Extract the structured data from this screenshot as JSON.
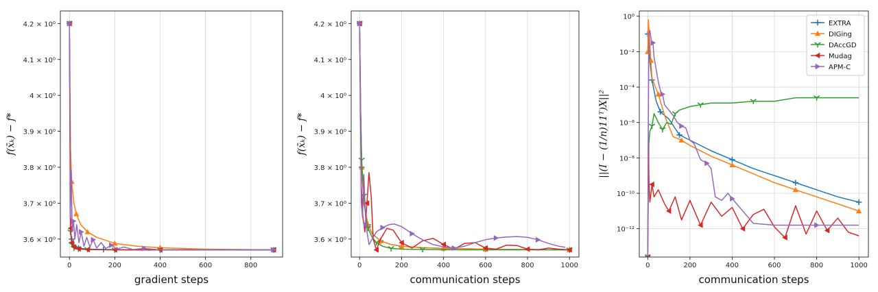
{
  "chart_data": [
    {
      "type": "line",
      "xlabel": "gradient steps",
      "ylabel": "f(x̄ₖ) − f*",
      "xlim": [
        -40,
        940
      ],
      "ylim": [
        3.55,
        4.235
      ],
      "xticks": [
        0,
        200,
        400,
        600,
        800
      ],
      "yticks": [
        3.6,
        3.7,
        3.8,
        3.9,
        4.0,
        4.1,
        4.2
      ],
      "ytick_labels": [
        "3.6 × 10⁰",
        "3.7 × 10⁰",
        "3.8 × 10⁰",
        "3.9 × 10⁰",
        "4 × 10⁰",
        "4.1 × 10⁰",
        "4.2 × 10⁰"
      ],
      "grid": "vertical",
      "series": [
        {
          "color": "#1f77b4",
          "marker": "plus",
          "x": [
            0,
            5,
            10,
            20,
            40,
            80,
            150,
            250,
            400,
            600,
            900
          ],
          "y": [
            4.2,
            3.62,
            3.6,
            3.585,
            3.575,
            3.572,
            3.571,
            3.57,
            3.57,
            3.57,
            3.57
          ]
        },
        {
          "color": "#ff7f0e",
          "marker": "triangle",
          "x": [
            0,
            5,
            10,
            20,
            30,
            50,
            80,
            120,
            200,
            300,
            400,
            600,
            900
          ],
          "y": [
            4.2,
            3.85,
            3.76,
            3.7,
            3.67,
            3.64,
            3.62,
            3.605,
            3.588,
            3.58,
            3.576,
            3.572,
            3.57
          ]
        },
        {
          "color": "#2ca02c",
          "marker": "tri_down",
          "x": [
            0,
            5,
            10,
            20,
            40,
            80,
            200,
            400,
            900
          ],
          "y": [
            4.2,
            3.62,
            3.585,
            3.575,
            3.572,
            3.571,
            3.57,
            3.57,
            3.57
          ]
        },
        {
          "color": "#d62728",
          "marker": "arrow_left",
          "x": [
            0,
            5,
            10,
            20,
            40,
            80,
            200,
            400,
            900
          ],
          "y": [
            4.2,
            3.63,
            3.59,
            3.578,
            3.573,
            3.571,
            3.57,
            3.57,
            3.57
          ]
        },
        {
          "color": "#9467bd",
          "marker": "arrow_right",
          "x": [
            0,
            4,
            8,
            12,
            18,
            24,
            32,
            42,
            52,
            64,
            76,
            90,
            105,
            120,
            140,
            160,
            185,
            210,
            240,
            280,
            330,
            400,
            500,
            650,
            900
          ],
          "y": [
            4.2,
            3.66,
            3.79,
            3.62,
            3.65,
            3.6,
            3.64,
            3.59,
            3.62,
            3.58,
            3.605,
            3.578,
            3.598,
            3.575,
            3.59,
            3.574,
            3.583,
            3.572,
            3.578,
            3.571,
            3.574,
            3.57,
            3.571,
            3.57,
            3.57
          ]
        }
      ]
    },
    {
      "type": "line",
      "xlabel": "communication steps",
      "ylabel": "f(x̄ₖ) − f*",
      "xlim": [
        -40,
        1045
      ],
      "ylim": [
        3.55,
        4.235
      ],
      "xticks": [
        0,
        200,
        400,
        600,
        800,
        1000
      ],
      "yticks": [
        3.6,
        3.7,
        3.8,
        3.9,
        4.0,
        4.1,
        4.2
      ],
      "ytick_labels": [
        "3.6 × 10⁰",
        "3.7 × 10⁰",
        "3.8 × 10⁰",
        "3.9 × 10⁰",
        "4 × 10⁰",
        "4.1 × 10⁰",
        "4.2 × 10⁰"
      ],
      "grid": "vertical",
      "series": [
        {
          "color": "#1f77b4",
          "marker": "plus",
          "x": [
            0,
            5,
            10,
            20,
            40,
            60,
            100,
            150,
            200,
            300,
            400,
            500,
            600,
            800,
            1000
          ],
          "y": [
            4.2,
            3.95,
            3.8,
            3.7,
            3.64,
            3.615,
            3.595,
            3.585,
            3.58,
            3.576,
            3.574,
            3.573,
            3.572,
            3.571,
            3.57
          ]
        },
        {
          "color": "#ff7f0e",
          "marker": "triangle",
          "x": [
            0,
            5,
            10,
            20,
            40,
            60,
            100,
            150,
            200,
            300,
            400,
            500,
            600,
            800,
            1000
          ],
          "y": [
            4.2,
            3.95,
            3.8,
            3.7,
            3.64,
            3.615,
            3.595,
            3.585,
            3.58,
            3.576,
            3.574,
            3.573,
            3.572,
            3.571,
            3.57
          ]
        },
        {
          "color": "#2ca02c",
          "marker": "tri_down",
          "x": [
            0,
            5,
            10,
            15,
            20,
            30,
            40,
            60,
            80,
            110,
            150,
            200,
            300,
            500,
            1000
          ],
          "y": [
            4.2,
            3.95,
            3.82,
            3.77,
            3.72,
            3.66,
            3.63,
            3.605,
            3.59,
            3.58,
            3.574,
            3.572,
            3.571,
            3.57,
            3.57
          ]
        },
        {
          "color": "#d62728",
          "marker": "arrow_left",
          "x": [
            0,
            8,
            16,
            25,
            35,
            45,
            55,
            65,
            80,
            100,
            130,
            160,
            200,
            250,
            300,
            350,
            400,
            450,
            500,
            550,
            600,
            650,
            700,
            750,
            800,
            850,
            900,
            950,
            1000
          ],
          "y": [
            4.2,
            3.75,
            3.66,
            3.62,
            3.7,
            3.785,
            3.72,
            3.6,
            3.57,
            3.6,
            3.63,
            3.625,
            3.59,
            3.575,
            3.595,
            3.602,
            3.585,
            3.572,
            3.588,
            3.59,
            3.575,
            3.572,
            3.583,
            3.582,
            3.572,
            3.57,
            3.575,
            3.572,
            3.57
          ]
        },
        {
          "color": "#9467bd",
          "marker": "arrow_right",
          "x": [
            0,
            8,
            14,
            20,
            30,
            45,
            60,
            80,
            110,
            140,
            165,
            200,
            250,
            300,
            350,
            400,
            450,
            500,
            550,
            600,
            650,
            700,
            750,
            800,
            850,
            900,
            950,
            980
          ],
          "y": [
            4.2,
            3.7,
            3.66,
            3.78,
            3.64,
            3.585,
            3.6,
            3.62,
            3.632,
            3.64,
            3.642,
            3.635,
            3.615,
            3.598,
            3.585,
            3.578,
            3.575,
            3.58,
            3.59,
            3.598,
            3.603,
            3.606,
            3.607,
            3.605,
            3.598,
            3.588,
            3.58,
            3.577
          ]
        }
      ]
    },
    {
      "type": "line",
      "xlabel": "communication steps",
      "ylabel": "||(I − (1/n)11ᵀ)X||²",
      "yscale": "log",
      "xlim": [
        -40,
        1045
      ],
      "ylim_log10": [
        -13.6,
        0.3
      ],
      "xticks": [
        0,
        200,
        400,
        600,
        800,
        1000
      ],
      "yticks_log10": [
        0,
        -2,
        -4,
        -6,
        -8,
        -10,
        -12
      ],
      "grid": "both",
      "legend_position": "top-right",
      "series": [
        {
          "name": "EXTRA",
          "color": "#1f77b4",
          "marker": "plus",
          "x": [
            0,
            5,
            10,
            20,
            30,
            40,
            60,
            80,
            100,
            150,
            200,
            300,
            400,
            500,
            600,
            700,
            800,
            900,
            1000
          ],
          "y_log10": [
            -1.0,
            -1.5,
            -2.5,
            -3.6,
            -4.2,
            -4.8,
            -5.4,
            -5.6,
            -5.8,
            -6.7,
            -7.0,
            -7.6,
            -8.1,
            -8.6,
            -9.0,
            -9.4,
            -9.8,
            -10.2,
            -10.5
          ]
        },
        {
          "name": "DIGing",
          "color": "#ff7f0e",
          "marker": "triangle",
          "x": [
            0,
            3,
            10,
            15,
            20,
            30,
            50,
            80,
            120,
            160,
            200,
            300,
            400,
            500,
            600,
            700,
            800,
            900,
            1000
          ],
          "y_log10": [
            -2.0,
            -0.2,
            -1.5,
            -2.5,
            -3.5,
            -3.8,
            -4.4,
            -5.6,
            -6.8,
            -7.0,
            -7.3,
            -7.9,
            -8.4,
            -8.9,
            -9.4,
            -9.8,
            -10.2,
            -10.6,
            -11.0
          ]
        },
        {
          "name": "DAccGD",
          "color": "#2ca02c",
          "marker": "tri_down",
          "x": [
            0,
            5,
            10,
            20,
            30,
            50,
            70,
            90,
            110,
            130,
            150,
            200,
            250,
            300,
            400,
            500,
            600,
            700,
            800,
            900,
            1000
          ],
          "y_log10": [
            -13.6,
            -7.2,
            -6.5,
            -6.2,
            -5.5,
            -6.0,
            -6.4,
            -6.0,
            -6.1,
            -5.5,
            -5.3,
            -5.1,
            -5.0,
            -4.9,
            -4.9,
            -4.8,
            -4.8,
            -4.6,
            -4.6,
            -4.6,
            -4.6
          ]
        },
        {
          "name": "Mudag",
          "color": "#d62728",
          "marker": "arrow_left",
          "x": [
            0,
            3,
            6,
            10,
            20,
            30,
            50,
            80,
            100,
            130,
            160,
            200,
            250,
            300,
            350,
            400,
            450,
            500,
            550,
            600,
            650,
            700,
            750,
            800,
            850,
            900,
            950,
            1000
          ],
          "y_log10": [
            -13.6,
            -7.0,
            -9.5,
            -10.5,
            -9.5,
            -10.2,
            -9.8,
            -10.6,
            -11.0,
            -10.2,
            -11.5,
            -10.4,
            -11.8,
            -10.5,
            -11.3,
            -10.8,
            -12.0,
            -11.2,
            -10.9,
            -11.9,
            -12.5,
            -10.7,
            -12.3,
            -11.0,
            -12.1,
            -11.4,
            -12.2,
            -12.4
          ]
        },
        {
          "name": "APM-C",
          "color": "#9467bd",
          "marker": "arrow_right",
          "x": [
            0,
            5,
            10,
            15,
            20,
            25,
            30,
            40,
            50,
            60,
            70,
            80,
            100,
            120,
            140,
            160,
            180,
            200,
            220,
            250,
            280,
            300,
            320,
            350,
            380,
            400,
            450,
            500,
            600,
            700,
            800,
            900,
            1000
          ],
          "y_log10": [
            -13.6,
            -1.0,
            -0.8,
            -1.2,
            -1.6,
            -1.5,
            -2.3,
            -3.0,
            -3.7,
            -4.2,
            -4.4,
            -5.0,
            -5.3,
            -5.6,
            -6.0,
            -6.2,
            -6.3,
            -7.0,
            -7.2,
            -8.1,
            -8.3,
            -8.6,
            -10.2,
            -10.4,
            -10.0,
            -10.3,
            -11.0,
            -11.7,
            -11.8,
            -11.8,
            -11.8,
            -11.8,
            -11.8
          ]
        }
      ]
    }
  ]
}
